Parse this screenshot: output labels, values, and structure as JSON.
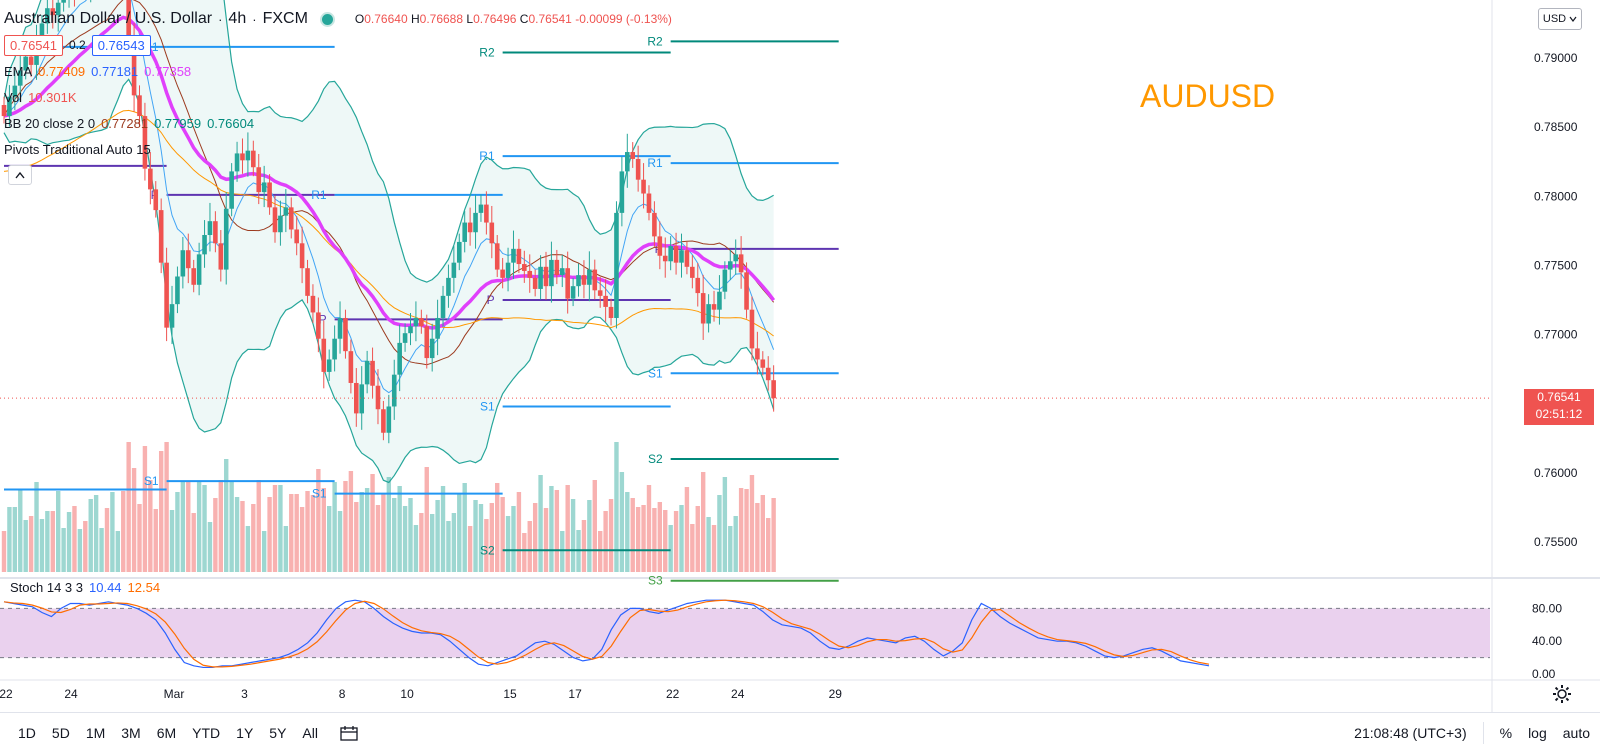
{
  "symbol": {
    "title": "Australian Dollar / U.S. Dollar",
    "interval": "4h",
    "exchange": "FXCM",
    "watermark": "AUDUSD"
  },
  "ohlc": {
    "o_label": "O",
    "o": "0.76640",
    "h_label": "H",
    "h": "0.76688",
    "l_label": "L",
    "l": "0.76496",
    "c_label": "C",
    "c": "0.76541",
    "change": "-0.00099 (-0.13%)"
  },
  "quote": {
    "sell": "0.76541",
    "spread": "0.2",
    "buy": "0.76543"
  },
  "indicators": {
    "ema": {
      "name": "EMA",
      "v1": "0.77409",
      "v2": "0.77181",
      "v3": "0.77358"
    },
    "vol": {
      "name": "Vol",
      "value": "10.301K"
    },
    "bb": {
      "name": "BB 20 close 2 0",
      "basis": "0.77281",
      "upper": "0.77959",
      "lower": "0.76604"
    },
    "pivots": {
      "name": "Pivots Traditional Auto 15"
    },
    "stoch": {
      "name": "Stoch 14 3 3",
      "k": "10.44",
      "d": "12.54"
    }
  },
  "currency": "USD",
  "last_price": {
    "price": "0.76541",
    "countdown": "02:51:12"
  },
  "price_axis": {
    "labels": [
      "0.79000",
      "0.78500",
      "0.78000",
      "0.77500",
      "0.77000",
      "0.76500",
      "0.76000",
      "0.75500"
    ],
    "values": [
      0.79,
      0.785,
      0.78,
      0.775,
      0.77,
      0.765,
      0.76,
      0.755
    ]
  },
  "stoch_axis": {
    "labels": [
      "80.00",
      "40.00",
      "0.00"
    ],
    "values": [
      80,
      40,
      0
    ],
    "upper_band": 80,
    "lower_band": 20
  },
  "time_axis": {
    "labels": [
      "22",
      "24",
      "Mar",
      "3",
      "8",
      "10",
      "15",
      "17",
      "22",
      "24",
      "29"
    ],
    "bars": [
      0,
      12,
      31,
      44,
      62,
      74,
      93,
      105,
      123,
      135,
      153
    ]
  },
  "pivot_labels": {
    "r1": "R1",
    "r2": "R2",
    "p": "P",
    "s1": "S1",
    "s2": "S2",
    "s3": "S3"
  },
  "pivot_levels": [
    {
      "from": -1,
      "to": 30,
      "R1": 0.7908,
      "P": 0.7822,
      "S1": 0.7588
    },
    {
      "from": 30,
      "to": 61,
      "R1": 0.7908,
      "P": 0.7801,
      "S1": 0.7594
    },
    {
      "from": 61,
      "to": 92,
      "R1": 0.7801,
      "P": 0.7711,
      "S1": 0.7585
    },
    {
      "from": 92,
      "to": 123,
      "R2": 0.7904,
      "R1": 0.7829,
      "P": 0.7725,
      "S1": 0.7648,
      "S2": 0.7544
    },
    {
      "from": 123,
      "to": 154,
      "R2": 0.7912,
      "R1": 0.7824,
      "P": 0.7762,
      "S1": 0.7672,
      "S2": 0.761,
      "S3": 0.7522
    }
  ],
  "chart_data": {
    "type": "candlestick",
    "close_series": [
      0.7858,
      0.7872,
      0.788,
      0.7891,
      0.7901,
      0.7895,
      0.7912,
      0.7925,
      0.7936,
      0.7931,
      0.794,
      0.7945,
      0.7952,
      0.7948,
      0.7955,
      0.795,
      0.796,
      0.7966,
      0.797,
      0.7962,
      0.7972,
      0.7977,
      0.7958,
      0.7912,
      0.7873,
      0.7858,
      0.782,
      0.7805,
      0.779,
      0.7752,
      0.7705,
      0.7722,
      0.7742,
      0.7761,
      0.7748,
      0.7736,
      0.7758,
      0.7772,
      0.7782,
      0.7766,
      0.7747,
      0.7791,
      0.7818,
      0.7831,
      0.7826,
      0.7833,
      0.7821,
      0.7803,
      0.781,
      0.7792,
      0.7774,
      0.7786,
      0.7792,
      0.7776,
      0.7766,
      0.7748,
      0.7728,
      0.7716,
      0.7697,
      0.7673,
      0.7682,
      0.7697,
      0.7712,
      0.7688,
      0.7665,
      0.7643,
      0.7664,
      0.7681,
      0.7663,
      0.7646,
      0.7629,
      0.7648,
      0.7671,
      0.7694,
      0.7701,
      0.7706,
      0.7712,
      0.7706,
      0.7683,
      0.7697,
      0.7712,
      0.7728,
      0.7741,
      0.7752,
      0.7767,
      0.7781,
      0.7774,
      0.7788,
      0.7794,
      0.7781,
      0.7766,
      0.7747,
      0.7741,
      0.7752,
      0.7762,
      0.7751,
      0.7746,
      0.7741,
      0.7733,
      0.7749,
      0.7735,
      0.7754,
      0.7743,
      0.7748,
      0.7726,
      0.7735,
      0.7743,
      0.7736,
      0.7747,
      0.7732,
      0.7728,
      0.772,
      0.7712,
      0.7788,
      0.7818,
      0.7832,
      0.7827,
      0.7812,
      0.7802,
      0.7788,
      0.7771,
      0.7757,
      0.7753,
      0.7764,
      0.7752,
      0.7761,
      0.7749,
      0.7741,
      0.773,
      0.7708,
      0.7722,
      0.7718,
      0.7731,
      0.7747,
      0.7753,
      0.7758,
      0.7745,
      0.7718,
      0.769,
      0.7682,
      0.7676,
      0.7667,
      0.7654
    ],
    "stoch_k": [
      88,
      86,
      84,
      82,
      75,
      70,
      80,
      86,
      86,
      84,
      86,
      88,
      86,
      84,
      80,
      74,
      66,
      50,
      30,
      14,
      10,
      8,
      8,
      10,
      10,
      12,
      14,
      16,
      18,
      20,
      24,
      30,
      38,
      50,
      66,
      80,
      88,
      90,
      88,
      80,
      70,
      62,
      56,
      52,
      50,
      50,
      48,
      40,
      30,
      20,
      12,
      10,
      14,
      18,
      22,
      30,
      38,
      40,
      36,
      28,
      20,
      16,
      18,
      30,
      54,
      72,
      80,
      80,
      76,
      74,
      78,
      82,
      86,
      88,
      90,
      90,
      90,
      88,
      86,
      84,
      76,
      66,
      60,
      58,
      56,
      50,
      40,
      32,
      30,
      34,
      40,
      44,
      42,
      40,
      38,
      44,
      46,
      40,
      30,
      22,
      28,
      38,
      66,
      86,
      80,
      70,
      62,
      56,
      50,
      44,
      42,
      40,
      40,
      38,
      34,
      28,
      22,
      20,
      22,
      26,
      30,
      32,
      28,
      22,
      16,
      14,
      12,
      10
    ]
  }
}
